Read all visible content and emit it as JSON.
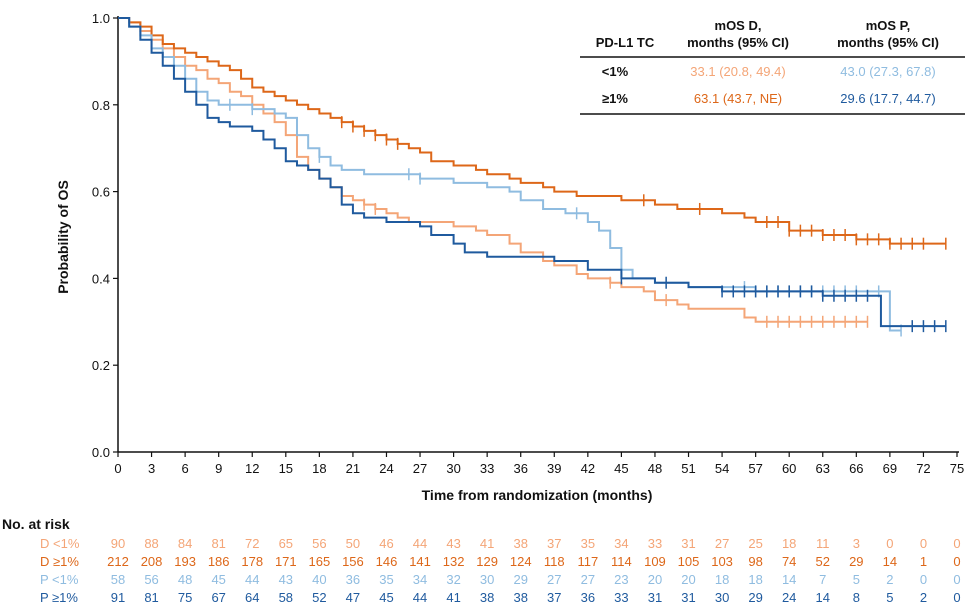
{
  "chart_data": {
    "type": "line",
    "subtype": "kaplan-meier",
    "xlabel": "Time from randomization (months)",
    "ylabel": "Probability of OS",
    "xlim": [
      0,
      75
    ],
    "ylim": [
      0.0,
      1.0
    ],
    "x_ticks": [
      0,
      3,
      6,
      9,
      12,
      15,
      18,
      21,
      24,
      27,
      30,
      33,
      36,
      39,
      42,
      45,
      48,
      51,
      54,
      57,
      60,
      63,
      66,
      69,
      72,
      75
    ],
    "y_ticks": [
      "0.0",
      "0.2",
      "0.4",
      "0.6",
      "0.8",
      "1.0"
    ],
    "legend": {
      "headers": [
        "PD-L1 TC",
        "mOS D,",
        "months (95% CI)",
        "mOS P,",
        "months (95% CI)"
      ],
      "rows": [
        {
          "group": "<1%",
          "mos_d": "33.1 (20.8, 49.4)",
          "mos_p": "43.0 (27.3, 67.8)"
        },
        {
          "group": "≥1%",
          "mos_d": "63.1 (43.7, NE)",
          "mos_p": "29.6 (17.7, 44.7)"
        }
      ]
    },
    "colors": {
      "d_low": "#F4A577",
      "d_high": "#DD6719",
      "p_low": "#8FBCE0",
      "p_high": "#1F5A9E",
      "axis": "#111111"
    },
    "series": [
      {
        "name": "D <1%",
        "color_key": "d_low",
        "points": [
          [
            0,
            1.0
          ],
          [
            1,
            0.99
          ],
          [
            2,
            0.97
          ],
          [
            3,
            0.95
          ],
          [
            4,
            0.93
          ],
          [
            5,
            0.91
          ],
          [
            6,
            0.89
          ],
          [
            7,
            0.88
          ],
          [
            8,
            0.86
          ],
          [
            9,
            0.85
          ],
          [
            10,
            0.83
          ],
          [
            11,
            0.82
          ],
          [
            12,
            0.8
          ],
          [
            13,
            0.78
          ],
          [
            14,
            0.76
          ],
          [
            15,
            0.73
          ],
          [
            16,
            0.68
          ],
          [
            17,
            0.65
          ],
          [
            18,
            0.63
          ],
          [
            19,
            0.61
          ],
          [
            20,
            0.59
          ],
          [
            21,
            0.58
          ],
          [
            22,
            0.57
          ],
          [
            23,
            0.56
          ],
          [
            24,
            0.55
          ],
          [
            25,
            0.54
          ],
          [
            26,
            0.53
          ],
          [
            27,
            0.53
          ],
          [
            28,
            0.53
          ],
          [
            30,
            0.52
          ],
          [
            32,
            0.51
          ],
          [
            33,
            0.5
          ],
          [
            35,
            0.48
          ],
          [
            36,
            0.46
          ],
          [
            38,
            0.44
          ],
          [
            39,
            0.43
          ],
          [
            41,
            0.41
          ],
          [
            42,
            0.4
          ],
          [
            44,
            0.39
          ],
          [
            45,
            0.38
          ],
          [
            47,
            0.37
          ],
          [
            48,
            0.35
          ],
          [
            50,
            0.34
          ],
          [
            51,
            0.33
          ],
          [
            54,
            0.33
          ],
          [
            56,
            0.31
          ],
          [
            57,
            0.3
          ],
          [
            60,
            0.3
          ],
          [
            63,
            0.3
          ],
          [
            66,
            0.3
          ],
          [
            67,
            0.3
          ]
        ],
        "censor_x": [
          20,
          22,
          23,
          44,
          49,
          58,
          59,
          60,
          61,
          62,
          63,
          64,
          65,
          66,
          67
        ]
      },
      {
        "name": "D ≥1%",
        "color_key": "d_high",
        "points": [
          [
            0,
            1.0
          ],
          [
            1,
            0.99
          ],
          [
            2,
            0.98
          ],
          [
            3,
            0.96
          ],
          [
            4,
            0.94
          ],
          [
            5,
            0.93
          ],
          [
            6,
            0.92
          ],
          [
            7,
            0.91
          ],
          [
            8,
            0.9
          ],
          [
            9,
            0.89
          ],
          [
            10,
            0.88
          ],
          [
            11,
            0.86
          ],
          [
            12,
            0.84
          ],
          [
            13,
            0.83
          ],
          [
            14,
            0.82
          ],
          [
            15,
            0.81
          ],
          [
            16,
            0.8
          ],
          [
            17,
            0.79
          ],
          [
            18,
            0.78
          ],
          [
            19,
            0.77
          ],
          [
            20,
            0.76
          ],
          [
            21,
            0.75
          ],
          [
            22,
            0.74
          ],
          [
            23,
            0.73
          ],
          [
            24,
            0.72
          ],
          [
            25,
            0.71
          ],
          [
            26,
            0.7
          ],
          [
            27,
            0.69
          ],
          [
            28,
            0.67
          ],
          [
            30,
            0.66
          ],
          [
            32,
            0.65
          ],
          [
            33,
            0.64
          ],
          [
            35,
            0.63
          ],
          [
            36,
            0.62
          ],
          [
            38,
            0.61
          ],
          [
            39,
            0.6
          ],
          [
            41,
            0.59
          ],
          [
            42,
            0.59
          ],
          [
            45,
            0.58
          ],
          [
            47,
            0.58
          ],
          [
            48,
            0.57
          ],
          [
            50,
            0.56
          ],
          [
            51,
            0.56
          ],
          [
            54,
            0.55
          ],
          [
            56,
            0.54
          ],
          [
            57,
            0.53
          ],
          [
            60,
            0.51
          ],
          [
            63,
            0.5
          ],
          [
            66,
            0.49
          ],
          [
            69,
            0.48
          ],
          [
            72,
            0.48
          ],
          [
            74,
            0.48
          ]
        ],
        "censor_x": [
          20,
          21,
          22,
          23,
          24,
          25,
          47,
          52,
          58,
          59,
          60,
          61,
          62,
          63,
          64,
          65,
          66,
          67,
          68,
          69,
          70,
          71,
          72,
          74
        ]
      },
      {
        "name": "P <1%",
        "color_key": "p_low",
        "points": [
          [
            0,
            1.0
          ],
          [
            1,
            0.98
          ],
          [
            2,
            0.96
          ],
          [
            3,
            0.93
          ],
          [
            4,
            0.91
          ],
          [
            5,
            0.89
          ],
          [
            6,
            0.86
          ],
          [
            7,
            0.83
          ],
          [
            8,
            0.81
          ],
          [
            9,
            0.8
          ],
          [
            12,
            0.79
          ],
          [
            14,
            0.78
          ],
          [
            15,
            0.77
          ],
          [
            16,
            0.73
          ],
          [
            17,
            0.7
          ],
          [
            18,
            0.68
          ],
          [
            19,
            0.66
          ],
          [
            20,
            0.65
          ],
          [
            22,
            0.64
          ],
          [
            24,
            0.64
          ],
          [
            27,
            0.63
          ],
          [
            30,
            0.62
          ],
          [
            33,
            0.61
          ],
          [
            35,
            0.6
          ],
          [
            36,
            0.58
          ],
          [
            38,
            0.56
          ],
          [
            40,
            0.55
          ],
          [
            42,
            0.53
          ],
          [
            43,
            0.51
          ],
          [
            44,
            0.47
          ],
          [
            45,
            0.42
          ],
          [
            46,
            0.4
          ],
          [
            48,
            0.39
          ],
          [
            50,
            0.39
          ],
          [
            51,
            0.38
          ],
          [
            54,
            0.38
          ],
          [
            57,
            0.37
          ],
          [
            60,
            0.37
          ],
          [
            63,
            0.37
          ],
          [
            66,
            0.37
          ],
          [
            68,
            0.37
          ],
          [
            69,
            0.28
          ],
          [
            70,
            0.28
          ]
        ],
        "censor_x": [
          10,
          12,
          18,
          26,
          27,
          41,
          56,
          57,
          58,
          59,
          60,
          61,
          62,
          63,
          64,
          65,
          66,
          68,
          70
        ]
      },
      {
        "name": "P ≥1%",
        "color_key": "p_high",
        "points": [
          [
            0,
            1.0
          ],
          [
            1,
            0.98
          ],
          [
            2,
            0.95
          ],
          [
            3,
            0.92
          ],
          [
            4,
            0.89
          ],
          [
            5,
            0.86
          ],
          [
            6,
            0.83
          ],
          [
            7,
            0.8
          ],
          [
            8,
            0.77
          ],
          [
            9,
            0.76
          ],
          [
            10,
            0.75
          ],
          [
            12,
            0.74
          ],
          [
            13,
            0.72
          ],
          [
            14,
            0.7
          ],
          [
            15,
            0.67
          ],
          [
            16,
            0.66
          ],
          [
            17,
            0.65
          ],
          [
            18,
            0.63
          ],
          [
            19,
            0.61
          ],
          [
            20,
            0.57
          ],
          [
            21,
            0.55
          ],
          [
            22,
            0.54
          ],
          [
            24,
            0.53
          ],
          [
            27,
            0.52
          ],
          [
            28,
            0.5
          ],
          [
            30,
            0.48
          ],
          [
            31,
            0.46
          ],
          [
            33,
            0.45
          ],
          [
            36,
            0.45
          ],
          [
            39,
            0.44
          ],
          [
            42,
            0.42
          ],
          [
            45,
            0.4
          ],
          [
            48,
            0.39
          ],
          [
            51,
            0.38
          ],
          [
            54,
            0.37
          ],
          [
            57,
            0.37
          ],
          [
            60,
            0.37
          ],
          [
            63,
            0.36
          ],
          [
            66,
            0.36
          ],
          [
            68,
            0.36
          ],
          [
            68.2,
            0.29
          ],
          [
            74,
            0.29
          ]
        ],
        "censor_x": [
          45,
          49,
          54,
          55,
          56,
          57,
          58,
          59,
          60,
          61,
          62,
          63,
          64,
          65,
          66,
          67,
          71,
          72,
          73,
          74
        ]
      }
    ],
    "at_risk": {
      "title": "No. at risk",
      "times": [
        0,
        3,
        6,
        9,
        12,
        15,
        18,
        21,
        24,
        27,
        30,
        33,
        36,
        39,
        42,
        45,
        48,
        51,
        54,
        57,
        60,
        63,
        66,
        69,
        72,
        75
      ],
      "rows": [
        {
          "label": "D <1%",
          "color_key": "d_low",
          "values": [
            "90",
            "88",
            "84",
            "81",
            "72",
            "65",
            "56",
            "50",
            "46",
            "44",
            "43",
            "41",
            "38",
            "37",
            "35",
            "34",
            "33",
            "31",
            "27",
            "25",
            "18",
            "11",
            "3",
            "0",
            "0",
            "0"
          ]
        },
        {
          "label": "D ≥1%",
          "color_key": "d_high",
          "values": [
            "212",
            "208",
            "193",
            "186",
            "178",
            "171",
            "165",
            "156",
            "146",
            "141",
            "132",
            "129",
            "124",
            "118",
            "117",
            "114",
            "109",
            "105",
            "103",
            "98",
            "74",
            "52",
            "29",
            "14",
            "1",
            "0"
          ]
        },
        {
          "label": "P <1%",
          "color_key": "p_low",
          "values": [
            "58",
            "56",
            "48",
            "45",
            "44",
            "43",
            "40",
            "36",
            "35",
            "34",
            "32",
            "30",
            "29",
            "27",
            "27",
            "23",
            "20",
            "20",
            "18",
            "18",
            "14",
            "7",
            "5",
            "2",
            "0",
            "0"
          ]
        },
        {
          "label": "P ≥1%",
          "color_key": "p_high",
          "values": [
            "91",
            "81",
            "75",
            "67",
            "64",
            "58",
            "52",
            "47",
            "45",
            "44",
            "41",
            "38",
            "38",
            "37",
            "36",
            "33",
            "31",
            "31",
            "30",
            "29",
            "24",
            "14",
            "8",
            "5",
            "2",
            "0"
          ]
        }
      ]
    }
  }
}
